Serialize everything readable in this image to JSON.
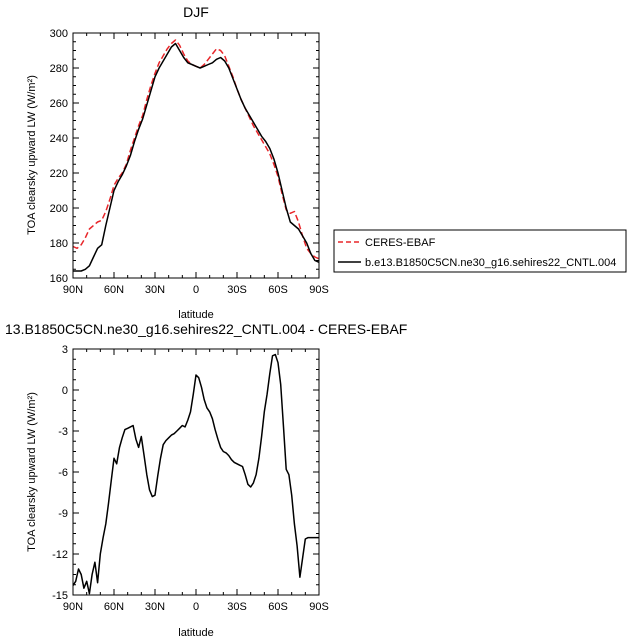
{
  "chart_data": [
    {
      "type": "line",
      "title": "DJF",
      "xlabel": "latitude",
      "ylabel": "TOA clearsky upward LW (W/m²)",
      "xlim": [
        -90,
        90
      ],
      "ylim": [
        160,
        300
      ],
      "xticks": [
        -90,
        -60,
        -30,
        0,
        30,
        60,
        90
      ],
      "xticklabels": [
        "90N",
        "60N",
        "30N",
        "0",
        "30S",
        "60S",
        "90S"
      ],
      "yticks": [
        160,
        180,
        200,
        220,
        240,
        260,
        280,
        300
      ],
      "yticklabels": [
        "160",
        "180",
        "200",
        "220",
        "240",
        "260",
        "280",
        "300"
      ],
      "legend_position": "right",
      "grid": false,
      "series": [
        {
          "name": "CERES-EBAF",
          "color": "#e8262a",
          "dash": "dashed",
          "x": [
            -90,
            -87,
            -84,
            -81,
            -78,
            -75,
            -72,
            -69,
            -66,
            -63,
            -60,
            -57,
            -54,
            -51,
            -48,
            -45,
            -42,
            -39,
            -36,
            -33,
            -30,
            -27,
            -24,
            -21,
            -18,
            -15,
            -12,
            -9,
            -6,
            -3,
            0,
            3,
            6,
            9,
            12,
            15,
            18,
            21,
            24,
            27,
            30,
            33,
            36,
            39,
            42,
            45,
            48,
            51,
            54,
            57,
            60,
            63,
            66,
            69,
            72,
            75,
            78,
            81,
            84,
            87,
            90
          ],
          "y": [
            178,
            177,
            179,
            183,
            188,
            190,
            192,
            193,
            198,
            205,
            213,
            217,
            220,
            225,
            233,
            240,
            247,
            253,
            262,
            270,
            277,
            283,
            287,
            291,
            294,
            296,
            293,
            288,
            284,
            282,
            281,
            280,
            282,
            285,
            288,
            291,
            290,
            287,
            281,
            275,
            268,
            262,
            257,
            252,
            247,
            243,
            239,
            235,
            231,
            225,
            218,
            208,
            199,
            197,
            198,
            192,
            184,
            177,
            174,
            172,
            171
          ]
        },
        {
          "name": "b.e13.B1850C5CN.ne30_g16.sehires22_CNTL.004",
          "color": "#000000",
          "dash": "solid",
          "x": [
            -90,
            -87,
            -84,
            -81,
            -78,
            -75,
            -72,
            -69,
            -66,
            -63,
            -60,
            -57,
            -54,
            -51,
            -48,
            -45,
            -42,
            -39,
            -36,
            -33,
            -30,
            -27,
            -24,
            -21,
            -18,
            -15,
            -12,
            -9,
            -6,
            -3,
            0,
            3,
            6,
            9,
            12,
            15,
            18,
            21,
            24,
            27,
            30,
            33,
            36,
            39,
            42,
            45,
            48,
            51,
            54,
            57,
            60,
            63,
            66,
            69,
            72,
            75,
            78,
            81,
            84,
            87,
            90
          ],
          "y": [
            164,
            164,
            164,
            165,
            167,
            172,
            177,
            179,
            190,
            200,
            210,
            215,
            219,
            224,
            230,
            238,
            245,
            251,
            259,
            267,
            275,
            280,
            284,
            288,
            292,
            294,
            290,
            286,
            283,
            282,
            281,
            280,
            281,
            282,
            283,
            285,
            286,
            284,
            280,
            274,
            268,
            262,
            257,
            253,
            249,
            245,
            241,
            238,
            234,
            228,
            220,
            210,
            200,
            192,
            190,
            188,
            184,
            180,
            174,
            170,
            169
          ]
        }
      ]
    },
    {
      "type": "line",
      "title": "13.B1850C5CN.ne30_g16.sehires22_CNTL.004 - CERES-EBAF",
      "xlabel": "latitude",
      "ylabel": "TOA clearsky upward LW (W/m²)",
      "xlim": [
        -90,
        90
      ],
      "ylim": [
        -15,
        3
      ],
      "xticks": [
        -90,
        -60,
        -30,
        0,
        30,
        60,
        90
      ],
      "xticklabels": [
        "90N",
        "60N",
        "30N",
        "0",
        "30S",
        "60S",
        "90S"
      ],
      "yticks": [
        -15,
        -12,
        -9,
        -6,
        -3,
        0,
        3
      ],
      "yticklabels": [
        "-15",
        "-12",
        "-9",
        "-6",
        "-3",
        "0",
        "3"
      ],
      "grid": false,
      "series": [
        {
          "color": "#000000",
          "dash": "solid",
          "x": [
            -90,
            -88,
            -86,
            -84,
            -82,
            -80,
            -78,
            -76,
            -74,
            -72,
            -70,
            -68,
            -66,
            -64,
            -62,
            -60,
            -58,
            -56,
            -54,
            -52,
            -50,
            -48,
            -46,
            -44,
            -42,
            -40,
            -38,
            -36,
            -34,
            -32,
            -30,
            -28,
            -26,
            -24,
            -22,
            -20,
            -18,
            -16,
            -14,
            -12,
            -10,
            -8,
            -6,
            -4,
            -2,
            0,
            2,
            4,
            6,
            8,
            10,
            12,
            14,
            16,
            18,
            20,
            22,
            24,
            26,
            28,
            30,
            32,
            34,
            36,
            38,
            40,
            42,
            44,
            46,
            48,
            50,
            52,
            54,
            56,
            58,
            60,
            62,
            64,
            66,
            68,
            70,
            72,
            74,
            76,
            78,
            80,
            82,
            84,
            86,
            88,
            90
          ],
          "y": [
            -14.3,
            -14.0,
            -13.1,
            -13.5,
            -14.5,
            -14.0,
            -14.9,
            -13.5,
            -12.6,
            -14.1,
            -12.0,
            -10.8,
            -9.8,
            -8.3,
            -6.6,
            -5.0,
            -5.4,
            -4.2,
            -3.5,
            -2.9,
            -2.8,
            -2.7,
            -2.6,
            -3.6,
            -4.2,
            -3.4,
            -4.8,
            -6.2,
            -7.3,
            -7.8,
            -7.7,
            -6.3,
            -5.0,
            -4.0,
            -3.7,
            -3.5,
            -3.3,
            -3.2,
            -3.0,
            -2.8,
            -2.6,
            -2.7,
            -2.2,
            -1.6,
            -0.3,
            1.1,
            0.9,
            0.2,
            -0.7,
            -1.3,
            -1.6,
            -2.1,
            -2.9,
            -3.6,
            -4.2,
            -4.5,
            -4.6,
            -4.8,
            -5.1,
            -5.3,
            -5.4,
            -5.5,
            -5.6,
            -6.2,
            -6.9,
            -7.1,
            -6.8,
            -6.2,
            -5.0,
            -3.4,
            -1.6,
            -0.3,
            1.2,
            2.5,
            2.6,
            2.0,
            0.4,
            -2.7,
            -5.8,
            -6.2,
            -7.7,
            -9.8,
            -11.4,
            -13.7,
            -12.3,
            -10.9,
            -10.8,
            -10.8,
            -10.8,
            -10.8,
            -10.8
          ]
        }
      ]
    }
  ]
}
